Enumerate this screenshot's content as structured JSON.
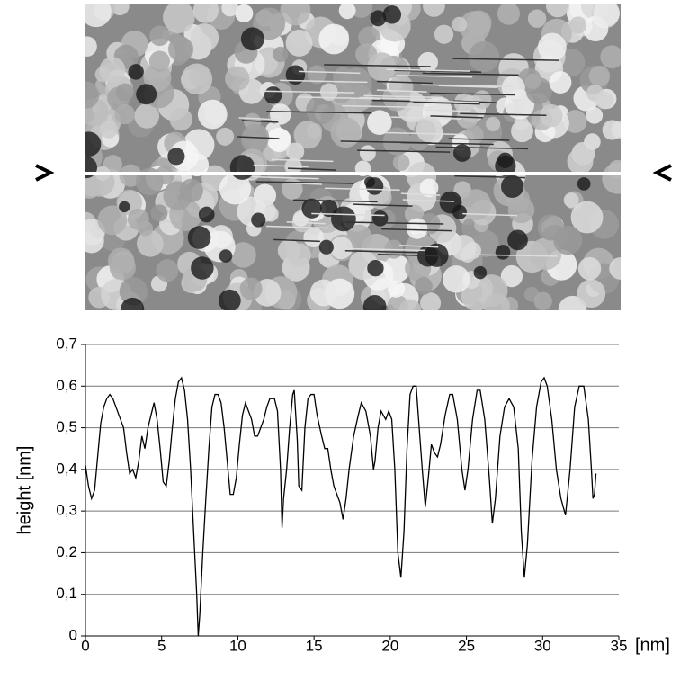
{
  "chart_data": {
    "type": "line",
    "xlabel": "[nm]",
    "ylabel": "height [nm]",
    "xlim": [
      0,
      35
    ],
    "xticks": [
      0,
      5,
      10,
      15,
      20,
      25,
      30,
      35
    ],
    "ylim": [
      0,
      0.7
    ],
    "yticks": [
      0,
      {
        "value": 0.1,
        "label": "0,1"
      },
      {
        "value": 0.2,
        "label": "0,2"
      },
      {
        "value": 0.3,
        "label": "0,3"
      },
      {
        "value": 0.4,
        "label": "0,4"
      },
      {
        "value": 0.5,
        "label": "0,5"
      },
      {
        "value": 0.6,
        "label": "0,6"
      },
      {
        "value": 0.7,
        "label": "0,7"
      }
    ],
    "grid": true,
    "color": "#000000",
    "x": [
      0,
      0.2,
      0.4,
      0.6,
      0.8,
      1.0,
      1.2,
      1.4,
      1.6,
      1.8,
      2.0,
      2.2,
      2.5,
      2.7,
      2.9,
      3.1,
      3.3,
      3.5,
      3.7,
      3.9,
      4.1,
      4.3,
      4.5,
      4.7,
      4.9,
      5.1,
      5.3,
      5.5,
      5.7,
      5.9,
      6.1,
      6.3,
      6.5,
      6.7,
      6.9,
      7.1,
      7.3,
      7.4,
      7.5,
      7.7,
      7.9,
      8.1,
      8.3,
      8.5,
      8.7,
      8.9,
      9.1,
      9.3,
      9.5,
      9.7,
      9.9,
      10.1,
      10.3,
      10.5,
      10.7,
      10.9,
      11.1,
      11.3,
      11.5,
      11.7,
      11.9,
      12.1,
      12.4,
      12.6,
      12.8,
      12.9,
      13.0,
      13.2,
      13.4,
      13.6,
      13.7,
      13.9,
      14.0,
      14.2,
      14.4,
      14.6,
      14.8,
      15.0,
      15.2,
      15.5,
      15.7,
      15.9,
      16.1,
      16.3,
      16.5,
      16.7,
      16.9,
      17.1,
      17.3,
      17.6,
      17.9,
      18.1,
      18.4,
      18.7,
      18.9,
      19.0,
      19.2,
      19.4,
      19.7,
      19.9,
      20.1,
      20.3,
      20.5,
      20.7,
      20.9,
      21.1,
      21.3,
      21.5,
      21.7,
      21.9,
      22.1,
      22.3,
      22.5,
      22.7,
      22.9,
      23.1,
      23.3,
      23.6,
      23.9,
      24.1,
      24.4,
      24.7,
      24.9,
      25.1,
      25.4,
      25.7,
      25.9,
      26.2,
      26.5,
      26.7,
      26.9,
      27.2,
      27.5,
      27.8,
      28.1,
      28.4,
      28.6,
      28.8,
      29.0,
      29.3,
      29.6,
      29.9,
      30.1,
      30.3,
      30.6,
      30.9,
      31.2,
      31.5,
      31.8,
      32.1,
      32.4,
      32.7,
      33.0,
      33.2,
      33.3,
      33.4,
      33.5
    ],
    "values": [
      0.41,
      0.36,
      0.33,
      0.35,
      0.43,
      0.51,
      0.55,
      0.57,
      0.58,
      0.57,
      0.55,
      0.53,
      0.5,
      0.44,
      0.39,
      0.4,
      0.38,
      0.42,
      0.48,
      0.45,
      0.5,
      0.53,
      0.56,
      0.52,
      0.45,
      0.37,
      0.36,
      0.42,
      0.5,
      0.57,
      0.61,
      0.62,
      0.59,
      0.52,
      0.4,
      0.25,
      0.1,
      0.0,
      0.05,
      0.2,
      0.33,
      0.45,
      0.55,
      0.58,
      0.58,
      0.56,
      0.5,
      0.42,
      0.34,
      0.34,
      0.38,
      0.46,
      0.53,
      0.56,
      0.54,
      0.52,
      0.48,
      0.48,
      0.5,
      0.52,
      0.55,
      0.57,
      0.57,
      0.54,
      0.4,
      0.26,
      0.33,
      0.4,
      0.5,
      0.58,
      0.59,
      0.47,
      0.36,
      0.35,
      0.5,
      0.57,
      0.58,
      0.58,
      0.53,
      0.48,
      0.45,
      0.45,
      0.4,
      0.36,
      0.34,
      0.32,
      0.28,
      0.33,
      0.4,
      0.48,
      0.53,
      0.56,
      0.54,
      0.48,
      0.4,
      0.42,
      0.5,
      0.54,
      0.52,
      0.54,
      0.52,
      0.4,
      0.2,
      0.14,
      0.25,
      0.45,
      0.58,
      0.6,
      0.6,
      0.5,
      0.4,
      0.31,
      0.38,
      0.46,
      0.44,
      0.43,
      0.46,
      0.53,
      0.58,
      0.58,
      0.52,
      0.4,
      0.35,
      0.4,
      0.52,
      0.59,
      0.59,
      0.52,
      0.38,
      0.27,
      0.33,
      0.48,
      0.55,
      0.57,
      0.55,
      0.45,
      0.25,
      0.14,
      0.22,
      0.42,
      0.55,
      0.61,
      0.62,
      0.6,
      0.52,
      0.4,
      0.33,
      0.29,
      0.4,
      0.55,
      0.6,
      0.6,
      0.52,
      0.4,
      0.33,
      0.34,
      0.39
    ]
  }
}
